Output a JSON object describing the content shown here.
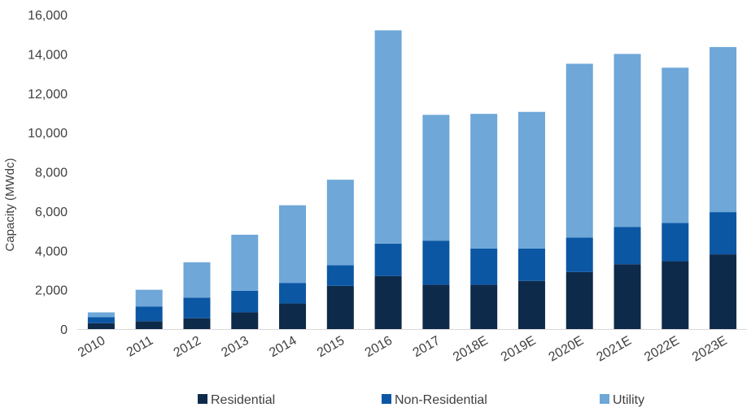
{
  "chart_data": {
    "type": "bar",
    "stacked": true,
    "categories": [
      "2010",
      "2011",
      "2012",
      "2013",
      "2014",
      "2015",
      "2016",
      "2017",
      "2018E",
      "2019E",
      "2020E",
      "2021E",
      "2022E",
      "2023E"
    ],
    "series": [
      {
        "name": "Residential",
        "color": "#0e2a4a",
        "values": [
          300,
          400,
          550,
          850,
          1300,
          2200,
          2700,
          2250,
          2250,
          2450,
          2900,
          3300,
          3450,
          3800
        ]
      },
      {
        "name": "Non-Residential",
        "color": "#0b57a4",
        "values": [
          300,
          750,
          1050,
          1100,
          1050,
          1050,
          1650,
          2250,
          1850,
          1650,
          1750,
          1900,
          1950,
          2150
        ]
      },
      {
        "name": "Utility",
        "color": "#6ea7d8",
        "values": [
          250,
          850,
          1800,
          2850,
          3950,
          4350,
          10850,
          6400,
          6850,
          6950,
          8850,
          8800,
          7900,
          8400
        ]
      }
    ],
    "title": "",
    "xlabel": "",
    "ylabel": "Capacity (MWdc)",
    "ylim": [
      0,
      16000
    ],
    "yticks": [
      0,
      2000,
      4000,
      6000,
      8000,
      10000,
      12000,
      14000,
      16000
    ],
    "ytick_labels": [
      "0",
      "2,000",
      "4,000",
      "6,000",
      "8,000",
      "10,000",
      "12,000",
      "14,000",
      "16,000"
    ],
    "grid": false,
    "legend_position": "bottom"
  }
}
